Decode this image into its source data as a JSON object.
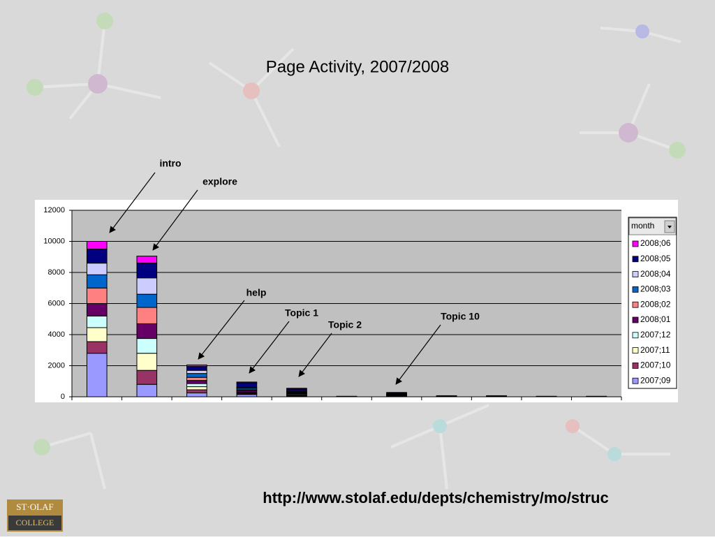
{
  "chart_data": {
    "type": "stacked-bar",
    "title": "Page Activity, 2007/2008",
    "categories": [
      null,
      null,
      null,
      null,
      null,
      null,
      null,
      null,
      null,
      null,
      null
    ],
    "series": [
      {
        "name": "2007;09",
        "color": "#9999ff",
        "values": [
          2800,
          800,
          250,
          150,
          50,
          3,
          50,
          7,
          7,
          3,
          3
        ]
      },
      {
        "name": "2007;10",
        "color": "#993366",
        "values": [
          750,
          900,
          200,
          50,
          50,
          3,
          20,
          7,
          7,
          3,
          3
        ]
      },
      {
        "name": "2007;11",
        "color": "#ffffcc",
        "values": [
          900,
          1100,
          200,
          50,
          50,
          3,
          20,
          7,
          7,
          3,
          3
        ]
      },
      {
        "name": "2007;12",
        "color": "#ccffff",
        "values": [
          750,
          950,
          200,
          50,
          50,
          3,
          20,
          7,
          7,
          3,
          3
        ]
      },
      {
        "name": "2008;01",
        "color": "#660066",
        "values": [
          800,
          950,
          200,
          100,
          50,
          3,
          30,
          7,
          7,
          3,
          3
        ]
      },
      {
        "name": "2008;02",
        "color": "#ff8080",
        "values": [
          1000,
          1050,
          200,
          50,
          50,
          3,
          20,
          7,
          7,
          3,
          3
        ]
      },
      {
        "name": "2008;03",
        "color": "#0066cc",
        "values": [
          850,
          850,
          250,
          100,
          50,
          3,
          30,
          7,
          7,
          3,
          3
        ]
      },
      {
        "name": "2008;04",
        "color": "#ccccff",
        "values": [
          750,
          1050,
          200,
          50,
          50,
          3,
          20,
          7,
          7,
          3,
          3
        ]
      },
      {
        "name": "2008;05",
        "color": "#000080",
        "values": [
          900,
          950,
          250,
          300,
          100,
          3,
          50,
          7,
          7,
          3,
          3
        ]
      },
      {
        "name": "2008;06",
        "color": "#ff00ff",
        "values": [
          500,
          450,
          100,
          50,
          50,
          3,
          20,
          7,
          7,
          3,
          3
        ]
      }
    ],
    "ylim": [
      0,
      12000
    ],
    "yticks": [
      0,
      2000,
      4000,
      6000,
      8000,
      10000,
      12000
    ],
    "grid": true,
    "legend_title": "month",
    "legend_position": "right",
    "annotations": [
      "intro",
      "explore",
      "help",
      "Topic 1",
      "Topic 2",
      "Topic 10"
    ]
  },
  "footer": {
    "url": "http://www.stolaf.edu/depts/chemistry/mo/struc",
    "logo_top": "ST·OLAF",
    "logo_bottom": "COLLEGE"
  }
}
